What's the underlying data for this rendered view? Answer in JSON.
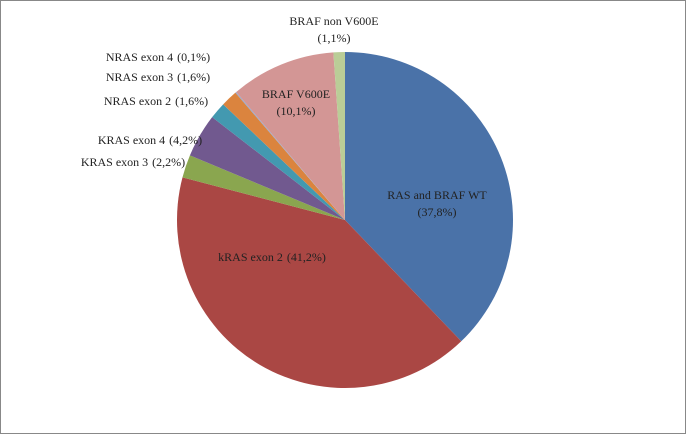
{
  "chart_data": {
    "type": "pie",
    "categories": [
      "RAS and BRAF WT",
      "kRAS exon 2",
      "KRAS exon 3",
      "KRAS exon 4",
      "NRAS  exon 2",
      "NRAS exon 3",
      "NRAS exon 4",
      "BRAF V600E",
      "BRAF non V600E"
    ],
    "values": [
      37.8,
      41.2,
      2.2,
      4.2,
      1.6,
      1.6,
      0.1,
      10.1,
      1.1
    ],
    "value_labels": [
      "(37,8%)",
      "(41,2%)",
      "(2,2%)",
      "(4,2%)",
      "(1,6%)",
      "(1,6%)",
      "(0,1%)",
      "(10,1%)",
      "(1,1%)"
    ],
    "colors": [
      "#4a72a8",
      "#aa4744",
      "#8aa64f",
      "#71598f",
      "#4399b0",
      "#db843e",
      "#94a9d0",
      "#d39695",
      "#bacd97"
    ]
  }
}
